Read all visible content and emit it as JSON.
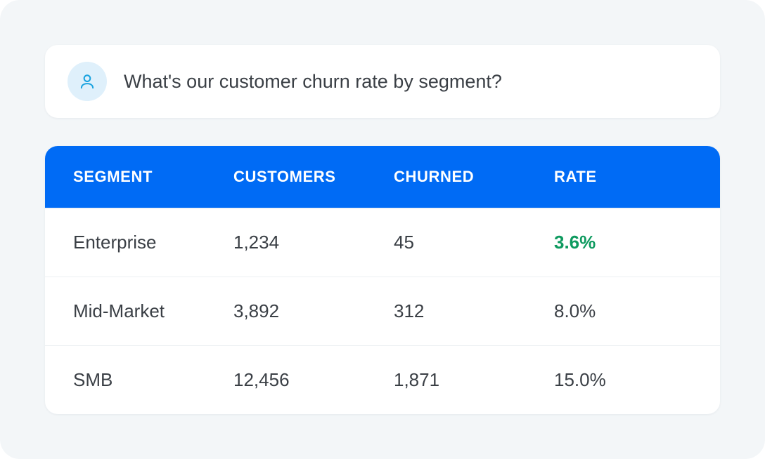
{
  "prompt": {
    "icon": "user-icon",
    "text": "What's our customer churn rate by segment?"
  },
  "table": {
    "columns": [
      "SEGMENT",
      "CUSTOMERS",
      "CHURNED",
      "RATE"
    ],
    "rows": [
      [
        "Enterprise",
        "1,234",
        "45",
        "3.6%"
      ],
      [
        "Mid-Market",
        "3,892",
        "312",
        "8.0%"
      ],
      [
        "SMB",
        "12,456",
        "1,871",
        "15.0%"
      ]
    ]
  },
  "colors": {
    "header_background": "#006bf5",
    "highlight_rate": "#0e9a5f",
    "avatar_background": "#dff0fb",
    "avatar_icon": "#1aa3df"
  }
}
